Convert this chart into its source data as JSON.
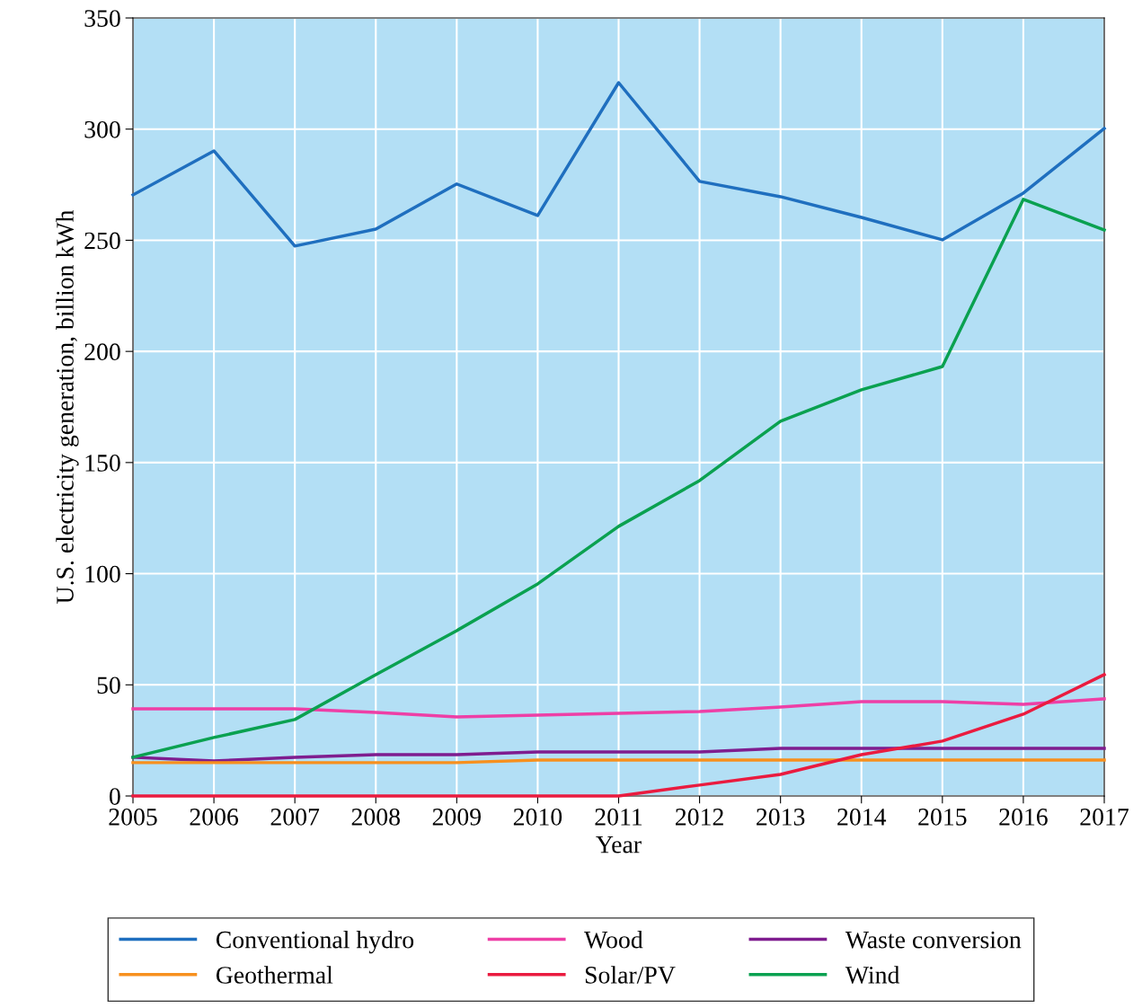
{
  "chart_data": {
    "type": "line",
    "xlabel": "Year",
    "ylabel": "U.S. electricity generation, billion kWh",
    "x": [
      2005,
      2006,
      2007,
      2008,
      2009,
      2010,
      2011,
      2012,
      2013,
      2014,
      2015,
      2016,
      2017
    ],
    "series": [
      {
        "name": "Conventional hydro",
        "color": "#1f6fbf",
        "values": [
          270.4,
          290.2,
          247.4,
          255.0,
          275.3,
          261.1,
          320.9,
          276.5,
          269.6,
          260.3,
          250.2,
          271.2,
          300.3
        ]
      },
      {
        "name": "Wood",
        "color": "#ee3fa6",
        "values": [
          39.2,
          39.2,
          39.2,
          37.6,
          35.6,
          36.4,
          37.2,
          38.0,
          40.0,
          42.4,
          42.4,
          41.2,
          43.7
        ]
      },
      {
        "name": "Waste conversion",
        "color": "#7f1d8f",
        "values": [
          17.4,
          15.8,
          17.4,
          18.6,
          18.6,
          19.8,
          19.8,
          19.8,
          21.4,
          21.4,
          21.4,
          21.4,
          21.4
        ]
      },
      {
        "name": "Geothermal",
        "color": "#f7901e",
        "values": [
          15.0,
          15.0,
          15.0,
          15.0,
          15.0,
          16.2,
          16.2,
          16.2,
          16.2,
          16.2,
          16.2,
          16.2,
          16.2
        ]
      },
      {
        "name": "Solar/PV",
        "color": "#ea1b3f",
        "values": [
          0,
          0,
          0,
          0,
          0,
          0,
          0,
          4.9,
          9.7,
          18.6,
          24.7,
          36.8,
          54.6
        ]
      },
      {
        "name": "Wind",
        "color": "#0aa150",
        "values": [
          17.4,
          26.3,
          34.4,
          54.6,
          74.4,
          95.4,
          121.3,
          141.9,
          168.6,
          182.7,
          193.2,
          268.4,
          254.6
        ]
      }
    ],
    "xlim": [
      2005,
      2017
    ],
    "xticks": [
      2005,
      2006,
      2007,
      2008,
      2009,
      2010,
      2011,
      2012,
      2013,
      2014,
      2015,
      2016,
      2017
    ],
    "ylim": [
      0,
      350
    ],
    "yticks": [
      0,
      50,
      100,
      150,
      200,
      250,
      300,
      350
    ],
    "grid": true,
    "legend": "bottom",
    "marker": "none",
    "line_style": "solid"
  }
}
